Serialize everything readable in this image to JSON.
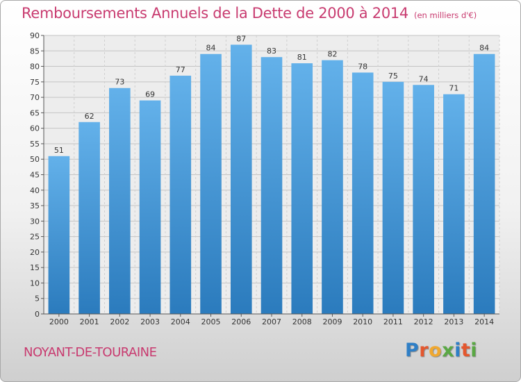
{
  "chart_data": {
    "type": "bar",
    "title": "Remboursements Annuels de la Dette de 2000 à 2014",
    "subtitle": "(en milliers d'€)",
    "categories": [
      "2000",
      "2001",
      "2002",
      "2003",
      "2004",
      "2005",
      "2006",
      "2007",
      "2008",
      "2009",
      "2010",
      "2011",
      "2012",
      "2013",
      "2014"
    ],
    "values": [
      51,
      62,
      73,
      69,
      77,
      84,
      87,
      83,
      81,
      82,
      78,
      75,
      74,
      71,
      84
    ],
    "ylim": [
      0,
      90
    ],
    "yticks": [
      0,
      5,
      10,
      15,
      20,
      25,
      30,
      35,
      40,
      45,
      50,
      55,
      60,
      65,
      70,
      75,
      80,
      85,
      90
    ],
    "grid": true,
    "bar_color_top": "#63b1ea",
    "bar_color_bottom": "#2b7bbd"
  },
  "commune": "NOYANT-DE-TOURAINE",
  "logo": {
    "letters": [
      "P",
      "r",
      "o",
      "x",
      "i",
      "t",
      "i"
    ],
    "colors": [
      "#2f7fc6",
      "#e4572e",
      "#f0a830",
      "#5aa844",
      "#2f7fc6",
      "#e4572e",
      "#5aa844"
    ]
  }
}
